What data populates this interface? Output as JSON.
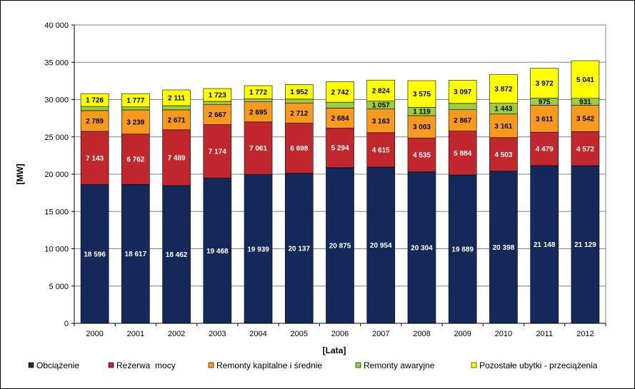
{
  "chart_data": {
    "type": "bar",
    "stacked": true,
    "title": "",
    "xlabel": "[Lata]",
    "ylabel": "[MW]",
    "ylim": [
      0,
      40000
    ],
    "yticks": [
      0,
      5000,
      10000,
      15000,
      20000,
      25000,
      30000,
      35000,
      40000
    ],
    "ytick_labels": [
      "0",
      "5 000",
      "10 000",
      "15 000",
      "20 000",
      "25 000",
      "30 000",
      "35 000",
      "40 000"
    ],
    "grid": true,
    "legend_position": "bottom",
    "categories": [
      "2000",
      "2001",
      "2002",
      "2003",
      "2004",
      "2005",
      "2006",
      "2007",
      "2008",
      "2009",
      "2010",
      "2011",
      "2012"
    ],
    "series": [
      {
        "name": "Obciążenie",
        "color": "#14285a",
        "label_color": "#ffffff",
        "values": [
          18596,
          18617,
          18462,
          19468,
          19939,
          20137,
          20875,
          20954,
          20304,
          19889,
          20398,
          21148,
          21129
        ],
        "labels": [
          "18 596",
          "18 617",
          "18 462",
          "19 468",
          "19 939",
          "20 137",
          "20 875",
          "20 954",
          "20 304",
          "19 889",
          "20 398",
          "21 148",
          "21 129"
        ]
      },
      {
        "name": "Rezerwa  mocy",
        "color": "#c0282d",
        "label_color": "#ffffff",
        "values": [
          7143,
          6762,
          7489,
          7174,
          7061,
          6698,
          5294,
          4615,
          4535,
          5884,
          4503,
          4479,
          4572
        ],
        "labels": [
          "7 143",
          "6 762",
          "7 489",
          "7 174",
          "7 061",
          "6 698",
          "5 294",
          "4 615",
          "4 535",
          "5 884",
          "4 503",
          "4 479",
          "4 572"
        ]
      },
      {
        "name": "Remonty kapitalne i średnie",
        "color": "#f79a1e",
        "label_color": "#000000",
        "values": [
          2789,
          3239,
          2671,
          2667,
          2695,
          2712,
          2684,
          3163,
          3003,
          2867,
          3161,
          3611,
          3542
        ],
        "labels": [
          "2 789",
          "3 239",
          "2 671",
          "2 667",
          "2 695",
          "2 712",
          "2 684",
          "3 163",
          "3 003",
          "2 867",
          "3 161",
          "3 611",
          "3 542"
        ]
      },
      {
        "name": "Remonty awaryjne",
        "color": "#9bcd3c",
        "label_color": "#000000",
        "values": [
          550,
          400,
          560,
          450,
          400,
          520,
          800,
          1057,
          1119,
          850,
          1443,
          975,
          931
        ],
        "labels": [
          "",
          "",
          "",
          "",
          "",
          "",
          "",
          "1 057",
          "1 119",
          "",
          "1 443",
          "975",
          "931"
        ]
      },
      {
        "name": "Pozostałe ubytki - przeciążenia",
        "color": "#ffff00",
        "label_color": "#000000",
        "values": [
          1726,
          1777,
          2111,
          1723,
          1772,
          1952,
          2742,
          2824,
          3575,
          3097,
          3872,
          3972,
          5041
        ],
        "labels": [
          "1 726",
          "1 777",
          "2 111",
          "1 723",
          "1 772",
          "1 952",
          "2 742",
          "2 824",
          "3 575",
          "3 097",
          "3 872",
          "3 972",
          "5 041"
        ]
      }
    ]
  }
}
